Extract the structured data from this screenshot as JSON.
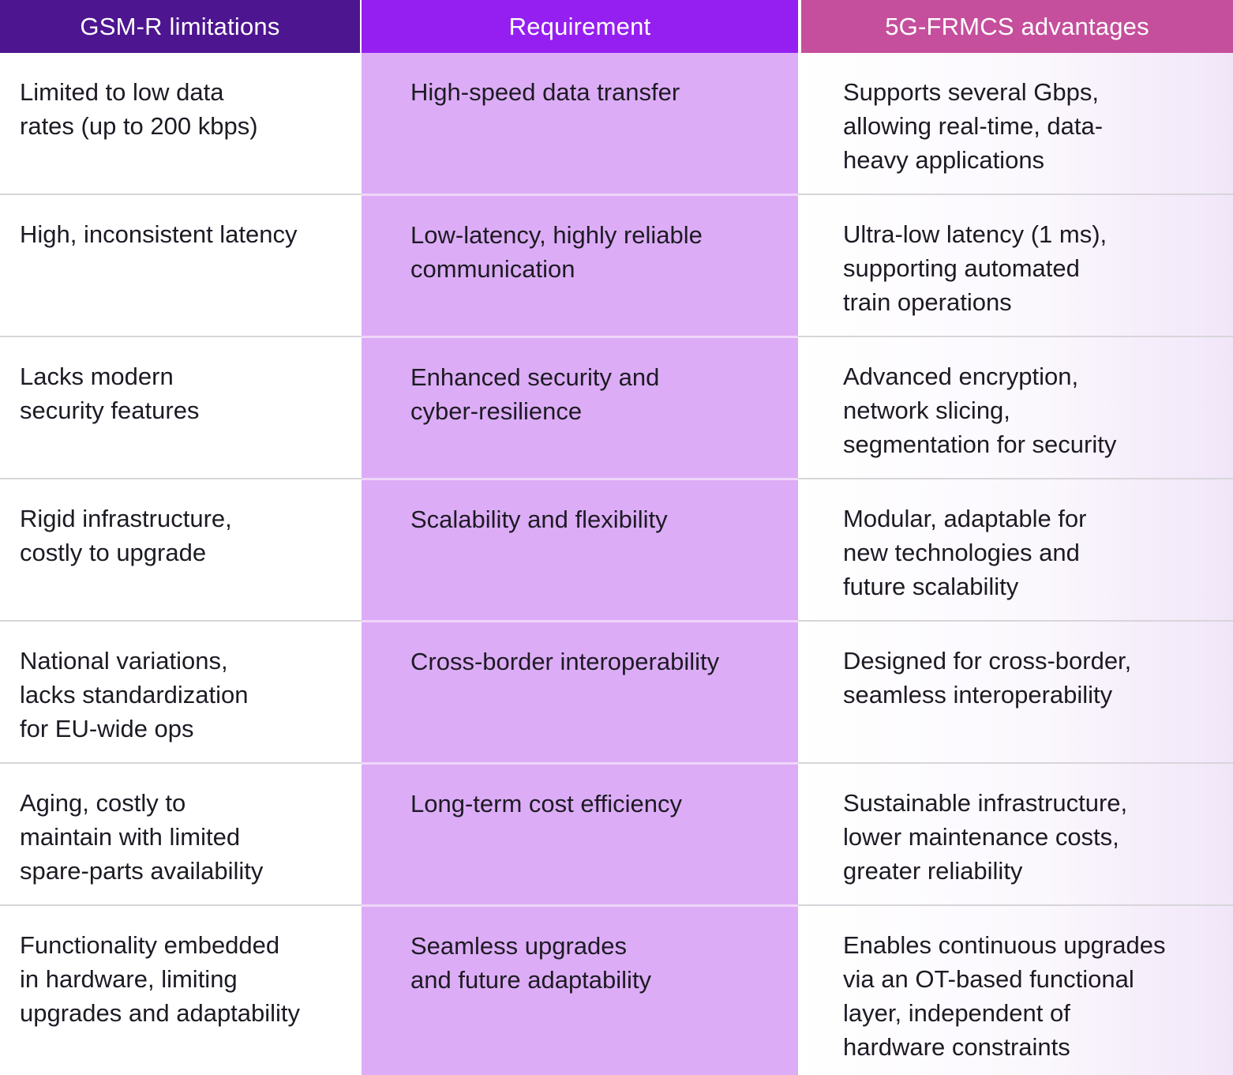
{
  "table": {
    "headers": [
      "GSM-R limitations",
      "Requirement",
      "5G-FRMCS advantages"
    ],
    "colors": {
      "header_gsmr": "#4d1590",
      "header_requirement": "#951ff0",
      "header_5g": "#c54f9c",
      "requirement_column_bg": "#dcadf6",
      "row_divider": "#d8d5da"
    },
    "rows": [
      {
        "limitation": [
          "Limited to low data",
          "rates (up to 200 kbps)"
        ],
        "requirement": [
          "High-speed data transfer"
        ],
        "advantage": [
          "Supports several Gbps,",
          "allowing real-time, data-",
          "heavy applications"
        ]
      },
      {
        "limitation": [
          "High, inconsistent latency"
        ],
        "requirement": [
          "Low-latency, highly reliable",
          "communication"
        ],
        "advantage": [
          "Ultra-low latency (1 ms),",
          "supporting automated",
          "train operations"
        ]
      },
      {
        "limitation": [
          "Lacks modern",
          "security features"
        ],
        "requirement": [
          "Enhanced security and",
          "cyber-resilience"
        ],
        "advantage": [
          "Advanced encryption,",
          "network slicing,",
          "segmentation for security"
        ]
      },
      {
        "limitation": [
          "Rigid infrastructure,",
          "costly to upgrade"
        ],
        "requirement": [
          "Scalability and flexibility"
        ],
        "advantage": [
          "Modular, adaptable for",
          "new technologies and",
          "future scalability"
        ]
      },
      {
        "limitation": [
          "National variations,",
          "lacks standardization",
          "for EU-wide ops"
        ],
        "requirement": [
          "Cross-border interoperability"
        ],
        "advantage": [
          "Designed for cross-border,",
          "seamless interoperability"
        ]
      },
      {
        "limitation": [
          "Aging, costly to",
          "maintain with limited",
          "spare-parts availability"
        ],
        "requirement": [
          "Long-term cost efficiency"
        ],
        "advantage": [
          "Sustainable infrastructure,",
          "lower maintenance costs,",
          "greater reliability"
        ]
      },
      {
        "limitation": [
          "Functionality embedded",
          "in hardware, limiting",
          "upgrades and adaptability"
        ],
        "requirement": [
          "Seamless upgrades",
          "and future adaptability"
        ],
        "advantage": [
          "Enables continuous upgrades",
          "via an OT-based functional",
          "layer, independent of",
          "hardware constraints"
        ]
      }
    ]
  }
}
